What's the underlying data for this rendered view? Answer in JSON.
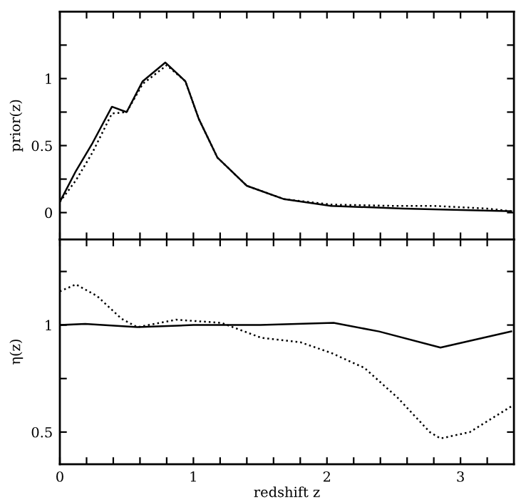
{
  "chart_data": [
    {
      "type": "line",
      "ylabel": "prior(z)",
      "xlim": [
        0,
        3.4
      ],
      "ylim": [
        -0.2,
        1.5
      ],
      "tick_labels": "y",
      "xticks": [
        {
          "value": 0,
          "label": null
        },
        {
          "value": 0.2,
          "label": null
        },
        {
          "value": 0.4,
          "label": null
        },
        {
          "value": 0.6,
          "label": null
        },
        {
          "value": 0.8,
          "label": null
        },
        {
          "value": 1,
          "label": null
        },
        {
          "value": 1.2,
          "label": null
        },
        {
          "value": 1.4,
          "label": null
        },
        {
          "value": 1.6,
          "label": null
        },
        {
          "value": 1.8,
          "label": null
        },
        {
          "value": 2,
          "label": null
        },
        {
          "value": 2.2,
          "label": null
        },
        {
          "value": 2.4,
          "label": null
        },
        {
          "value": 2.6,
          "label": null
        },
        {
          "value": 2.8,
          "label": null
        },
        {
          "value": 3,
          "label": null
        },
        {
          "value": 3.2,
          "label": null
        }
      ],
      "yticks": [
        0,
        {
          "value": 0.25,
          "label": null
        },
        0.5,
        {
          "value": 0.75,
          "label": null
        },
        1,
        {
          "value": 1.25,
          "label": null
        }
      ],
      "series": [
        {
          "color": "#000000",
          "line_style": "solid",
          "x": [
            0,
            0.12,
            0.245,
            0.39,
            0.5,
            0.62,
            0.79,
            0.94,
            1.04,
            1.18,
            1.4,
            1.68,
            2.03,
            2.57,
            3.38
          ],
          "values": [
            0.08,
            0.31,
            0.52,
            0.79,
            0.75,
            0.98,
            1.12,
            0.98,
            0.7,
            0.41,
            0.2,
            0.1,
            0.05,
            0.03,
            0.01
          ]
        },
        {
          "color": "#000000",
          "line_style": "dotted",
          "x": [
            0,
            0.12,
            0.245,
            0.39,
            0.5,
            0.62,
            0.8,
            0.94,
            1.04,
            1.18,
            1.4,
            1.68,
            2.03,
            2.5,
            2.8,
            3.2,
            3.38
          ],
          "values": [
            0.08,
            0.24,
            0.45,
            0.74,
            0.75,
            0.96,
            1.1,
            0.98,
            0.7,
            0.41,
            0.2,
            0.1,
            0.06,
            0.05,
            0.05,
            0.03,
            0.01
          ]
        }
      ]
    },
    {
      "type": "line",
      "ylabel": "η(z)",
      "xlabel": "redshift z",
      "xlim": [
        0,
        3.4
      ],
      "ylim": [
        0.35,
        1.4
      ],
      "xticks": [
        0,
        {
          "value": 0.2,
          "label": null
        },
        {
          "value": 0.4,
          "label": null
        },
        {
          "value": 0.6,
          "label": null
        },
        {
          "value": 0.8,
          "label": null
        },
        1,
        {
          "value": 1.2,
          "label": null
        },
        {
          "value": 1.4,
          "label": null
        },
        {
          "value": 1.6,
          "label": null
        },
        {
          "value": 1.8,
          "label": null
        },
        2,
        {
          "value": 2.2,
          "label": null
        },
        {
          "value": 2.4,
          "label": null
        },
        {
          "value": 2.6,
          "label": null
        },
        {
          "value": 2.8,
          "label": null
        },
        3,
        {
          "value": 3.2,
          "label": null
        }
      ],
      "yticks": [
        0.5,
        {
          "value": 0.75,
          "label": null
        },
        1,
        {
          "value": 1.25,
          "label": null
        }
      ],
      "series": [
        {
          "color": "#000000",
          "line_style": "solid",
          "x": [
            0,
            0.19,
            0.58,
            1.0,
            1.5,
            2.05,
            2.39,
            2.85,
            3.38
          ],
          "values": [
            1.0,
            1.005,
            0.99,
            1.0,
            1.0,
            1.01,
            0.97,
            0.895,
            0.97
          ]
        },
        {
          "color": "#000000",
          "line_style": "dotted",
          "x": [
            0,
            0.12,
            0.28,
            0.46,
            0.58,
            0.87,
            1.21,
            1.51,
            1.8,
            2.03,
            2.28,
            2.53,
            2.77,
            2.85,
            3.07,
            3.38
          ],
          "values": [
            1.157,
            1.19,
            1.135,
            1.03,
            0.99,
            1.025,
            1.01,
            0.94,
            0.92,
            0.87,
            0.8,
            0.66,
            0.5,
            0.47,
            0.5,
            0.62
          ]
        }
      ]
    }
  ]
}
